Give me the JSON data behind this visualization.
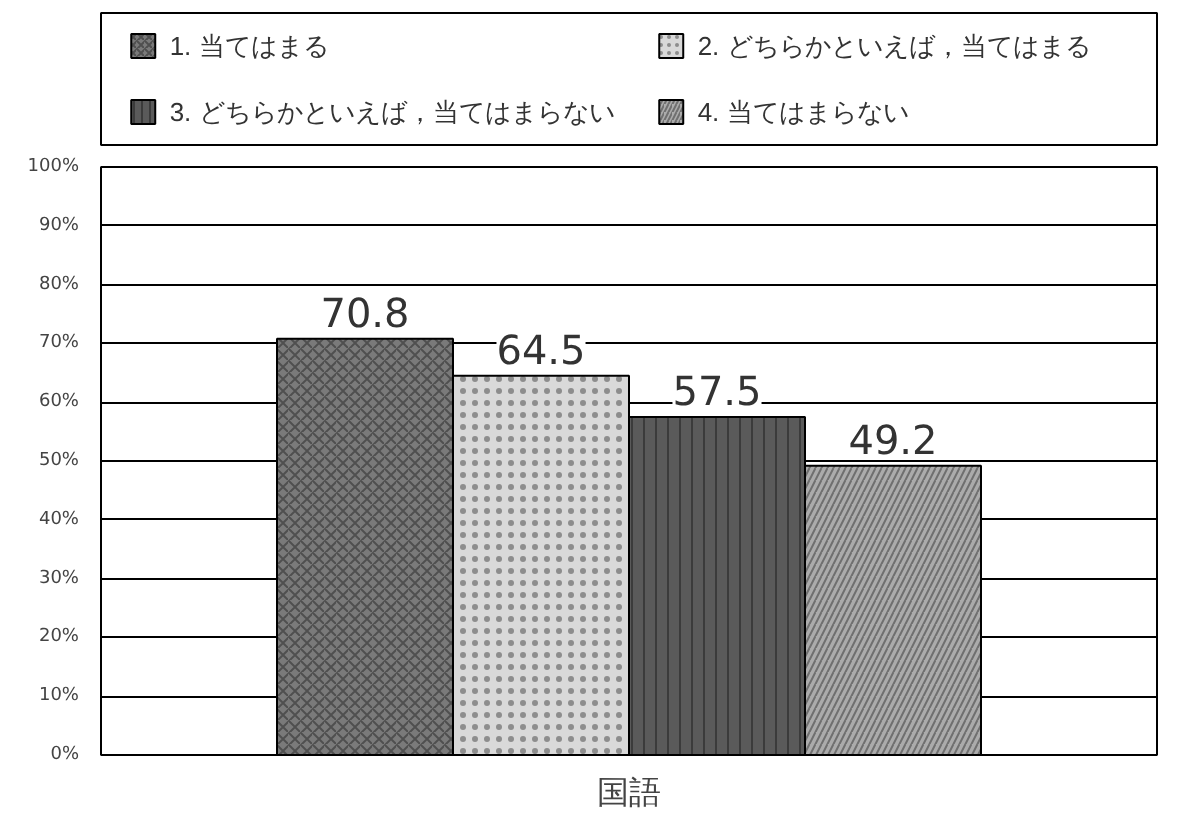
{
  "chart_data": {
    "type": "bar",
    "categories": [
      "国語"
    ],
    "series": [
      {
        "name": "1. 当てはまる",
        "color": "#7a7a7a",
        "values": [
          70.8
        ]
      },
      {
        "name": "2. どちらかといえば，当てはまる",
        "color": "#d9d9d9",
        "values": [
          64.5
        ]
      },
      {
        "name": "3. どちらかといえば，当てはまらない",
        "color": "#5a5a5a",
        "values": [
          57.5
        ]
      },
      {
        "name": "4. 当てはまらない",
        "color": "#ababab",
        "values": [
          49.2
        ]
      }
    ],
    "ylim": [
      0,
      100
    ],
    "yticks": [
      {
        "value": 0,
        "label": "0%"
      },
      {
        "value": 10,
        "label": "10%"
      },
      {
        "value": 20,
        "label": "20%"
      },
      {
        "value": 30,
        "label": "30%"
      },
      {
        "value": 40,
        "label": "40%"
      },
      {
        "value": 50,
        "label": "50%"
      },
      {
        "value": 60,
        "label": "60%"
      },
      {
        "value": 70,
        "label": "70%"
      },
      {
        "value": 80,
        "label": "80%"
      },
      {
        "value": 90,
        "label": "90%"
      },
      {
        "value": 100,
        "label": "100%"
      }
    ],
    "grid": "y",
    "legend": "top",
    "data_labels": true
  }
}
